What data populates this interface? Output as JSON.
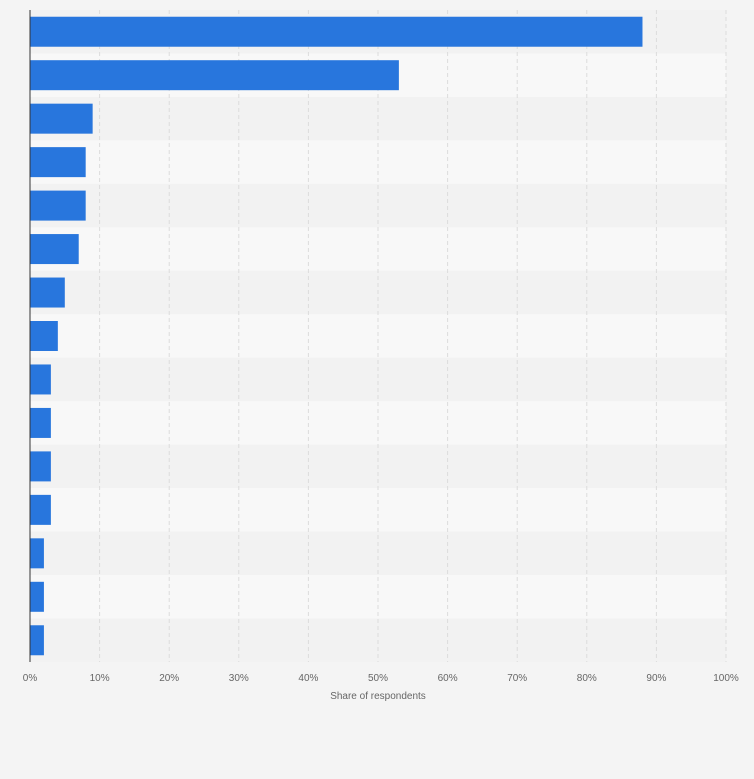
{
  "chart_data": {
    "type": "bar",
    "orientation": "horizontal",
    "title": "",
    "xlabel": "Share of respondents",
    "ylabel": "",
    "xlim": [
      0,
      100
    ],
    "x_ticks": [
      0,
      10,
      20,
      30,
      40,
      50,
      60,
      70,
      80,
      90,
      100
    ],
    "x_tick_labels": [
      "0%",
      "10%",
      "20%",
      "30%",
      "40%",
      "50%",
      "60%",
      "70%",
      "80%",
      "90%",
      "100%"
    ],
    "categories": [
      "",
      "",
      "",
      "",
      "",
      "",
      "",
      "",
      "",
      "",
      "",
      "",
      "",
      "",
      ""
    ],
    "values": [
      88,
      53,
      9,
      8,
      8,
      7,
      5,
      4,
      3,
      3,
      3,
      3,
      2,
      2,
      2
    ],
    "grid": true,
    "legend": "none",
    "colors": {
      "bar": "#2876dd",
      "background": "#f4f4f4",
      "plot_band_light": "#f8f8f8",
      "plot_band_dark": "#f2f2f2",
      "gridline": "#dcdcdc",
      "axis": "#333333",
      "text": "#666666"
    }
  }
}
